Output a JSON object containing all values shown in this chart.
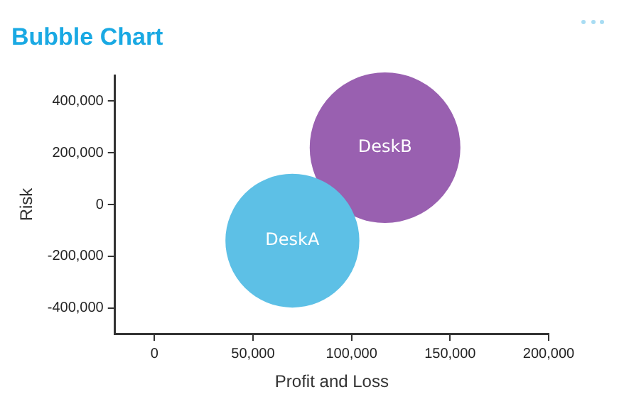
{
  "chart_data": {
    "type": "bubble",
    "title": "Bubble Chart",
    "xlabel": "Profit and Loss",
    "ylabel": "Risk",
    "xlim": [
      -20000,
      200000
    ],
    "xticks": [
      {
        "value": 0,
        "label": "0"
      },
      {
        "value": 50000,
        "label": "50,000"
      },
      {
        "value": 100000,
        "label": "100,000"
      },
      {
        "value": 150000,
        "label": "150,000"
      },
      {
        "value": 200000,
        "label": "200,000"
      }
    ],
    "ylim": [
      -500000,
      500000
    ],
    "yticks": [
      {
        "value": -400000,
        "label": "-400,000"
      },
      {
        "value": -200000,
        "label": "-200,000"
      },
      {
        "value": 0,
        "label": "0"
      },
      {
        "value": 200000,
        "label": "200,000"
      },
      {
        "value": 400000,
        "label": "400,000"
      }
    ],
    "grid": false,
    "legend": false,
    "series": [
      {
        "name": "DeskA",
        "color": "#5dc0e6",
        "x": [
          70000
        ],
        "values": [
          -140000
        ],
        "sizes": [
          0.79
        ]
      },
      {
        "name": "DeskB",
        "color": "#9960b0",
        "x": [
          117000
        ],
        "values": [
          220000
        ],
        "sizes": [
          1
        ]
      }
    ]
  }
}
